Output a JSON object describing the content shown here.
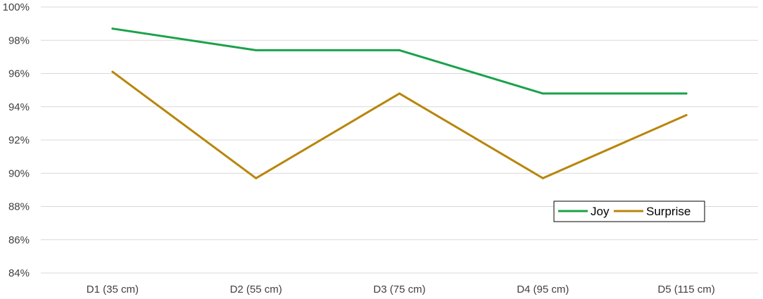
{
  "chart_data": {
    "type": "line",
    "categories": [
      "D1 (35 cm)",
      "D2 (55 cm)",
      "D3 (75 cm)",
      "D4 (95 cm)",
      "D5 (115 cm)"
    ],
    "series": [
      {
        "name": "Joy",
        "values": [
          98.7,
          97.4,
          97.4,
          94.8,
          94.8
        ],
        "color": "#1aa24a"
      },
      {
        "name": "Surprise",
        "values": [
          96.1,
          89.7,
          94.8,
          89.7,
          93.5
        ],
        "color": "#b8860b"
      }
    ],
    "title": "",
    "xlabel": "",
    "ylabel": "",
    "ylim": [
      84,
      100
    ],
    "y_ticks": [
      "84%",
      "86%",
      "88%",
      "90%",
      "92%",
      "94%",
      "96%",
      "98%",
      "100%"
    ],
    "y_tick_values": [
      84,
      86,
      88,
      90,
      92,
      94,
      96,
      98,
      100
    ],
    "grid": true,
    "legend": "bottom-right"
  }
}
